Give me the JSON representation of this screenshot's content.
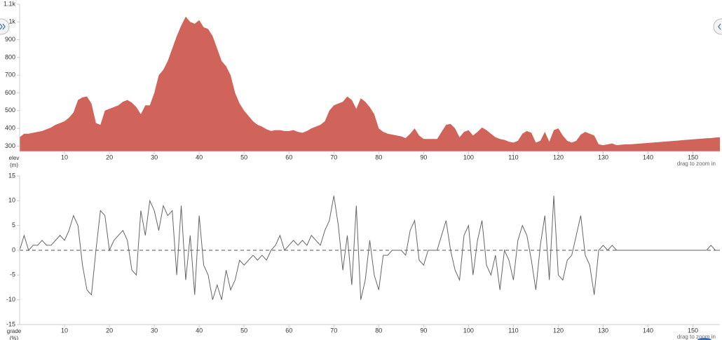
{
  "chart_data": [
    {
      "type": "area",
      "color": "#d0645a",
      "ylabel_lines": [
        "elev",
        "(m)"
      ],
      "annotation": "drag to zoom in",
      "xlim": [
        0,
        156
      ],
      "xticks": [
        10,
        20,
        30,
        40,
        50,
        60,
        70,
        80,
        90,
        100,
        110,
        120,
        130,
        140,
        150
      ],
      "ylim": [
        270,
        1100
      ],
      "yticks": [
        300,
        400,
        500,
        600,
        700,
        800,
        900,
        {
          "value": 1000,
          "label": "1k"
        },
        {
          "value": 1100,
          "label": "1.1k"
        }
      ],
      "x": [
        0,
        1,
        2,
        3,
        4,
        5,
        6,
        7,
        8,
        9,
        10,
        11,
        12,
        13,
        14,
        15,
        16,
        17,
        18,
        19,
        20,
        21,
        22,
        23,
        24,
        25,
        26,
        27,
        28,
        29,
        30,
        31,
        32,
        33,
        34,
        35,
        36,
        37,
        38,
        39,
        40,
        41,
        42,
        43,
        44,
        45,
        46,
        47,
        48,
        49,
        50,
        51,
        52,
        53,
        54,
        55,
        56,
        57,
        58,
        59,
        60,
        61,
        62,
        63,
        64,
        65,
        66,
        67,
        68,
        69,
        70,
        71,
        72,
        73,
        74,
        75,
        76,
        77,
        78,
        79,
        80,
        81,
        82,
        83,
        84,
        85,
        86,
        87,
        88,
        89,
        90,
        91,
        92,
        93,
        94,
        95,
        96,
        97,
        98,
        99,
        100,
        101,
        102,
        103,
        104,
        105,
        106,
        107,
        108,
        109,
        110,
        111,
        112,
        113,
        114,
        115,
        116,
        117,
        118,
        119,
        120,
        121,
        122,
        123,
        124,
        125,
        126,
        127,
        128,
        129,
        130,
        131,
        132,
        133,
        134,
        135,
        136,
        137,
        138,
        139,
        140,
        141,
        142,
        143,
        144,
        145,
        146,
        147,
        148,
        149,
        150,
        151,
        152,
        153,
        154,
        155,
        156
      ],
      "values": [
        350,
        370,
        370,
        375,
        380,
        385,
        395,
        405,
        420,
        430,
        440,
        460,
        490,
        560,
        575,
        580,
        540,
        430,
        420,
        500,
        510,
        520,
        530,
        550,
        560,
        545,
        520,
        480,
        530,
        530,
        600,
        700,
        730,
        780,
        850,
        920,
        980,
        1030,
        1000,
        990,
        1010,
        970,
        960,
        920,
        850,
        780,
        750,
        700,
        600,
        540,
        500,
        470,
        440,
        420,
        410,
        395,
        385,
        390,
        390,
        385,
        385,
        390,
        380,
        375,
        385,
        400,
        410,
        420,
        440,
        500,
        530,
        540,
        550,
        580,
        560,
        510,
        570,
        550,
        520,
        480,
        400,
        380,
        370,
        365,
        360,
        355,
        345,
        370,
        400,
        360,
        340,
        340,
        340,
        340,
        380,
        420,
        425,
        400,
        350,
        380,
        390,
        360,
        380,
        405,
        390,
        370,
        350,
        340,
        335,
        325,
        320,
        330,
        370,
        385,
        375,
        320,
        330,
        380,
        325,
        390,
        400,
        360,
        330,
        320,
        330,
        365,
        380,
        370,
        360,
        310,
        305,
        310,
        315,
        305,
        308,
        310,
        310,
        312,
        314,
        316,
        318,
        320,
        322,
        324,
        326,
        328,
        330,
        332,
        334,
        336,
        338,
        340,
        342,
        344,
        345,
        348,
        350
      ]
    },
    {
      "type": "line",
      "color": "#666666",
      "hline": 0,
      "ylabel_lines": [
        "grade",
        "(%)"
      ],
      "annotation": "drag to zoom in",
      "xlim": [
        0,
        156
      ],
      "xticks": [
        10,
        20,
        30,
        40,
        50,
        60,
        70,
        80,
        90,
        100,
        110,
        120,
        130,
        140,
        150
      ],
      "ylim": [
        -15,
        15
      ],
      "yticks": [
        -15,
        -10,
        -5,
        0,
        5,
        10,
        15
      ],
      "x": [
        0,
        1,
        2,
        3,
        4,
        5,
        6,
        7,
        8,
        9,
        10,
        11,
        12,
        13,
        14,
        15,
        16,
        17,
        18,
        19,
        20,
        21,
        22,
        23,
        24,
        25,
        26,
        27,
        28,
        29,
        30,
        31,
        32,
        33,
        34,
        35,
        36,
        37,
        38,
        39,
        40,
        41,
        42,
        43,
        44,
        45,
        46,
        47,
        48,
        49,
        50,
        51,
        52,
        53,
        54,
        55,
        56,
        57,
        58,
        59,
        60,
        61,
        62,
        63,
        64,
        65,
        66,
        67,
        68,
        69,
        70,
        71,
        72,
        73,
        74,
        75,
        76,
        77,
        78,
        79,
        80,
        81,
        82,
        83,
        84,
        85,
        86,
        87,
        88,
        89,
        90,
        91,
        92,
        93,
        94,
        95,
        96,
        97,
        98,
        99,
        100,
        101,
        102,
        103,
        104,
        105,
        106,
        107,
        108,
        109,
        110,
        111,
        112,
        113,
        114,
        115,
        116,
        117,
        118,
        119,
        120,
        121,
        122,
        123,
        124,
        125,
        126,
        127,
        128,
        129,
        130,
        131,
        132,
        133,
        134,
        135,
        136,
        137,
        138,
        139,
        140,
        141,
        142,
        143,
        144,
        145,
        146,
        147,
        148,
        149,
        150,
        151,
        152,
        153,
        154,
        155,
        156
      ],
      "values": [
        0,
        3,
        0,
        1,
        1,
        2,
        1,
        1,
        2,
        3,
        2,
        4,
        7,
        5,
        -3,
        -8,
        -9,
        0,
        8,
        7,
        0,
        2,
        3,
        4,
        2,
        -4,
        -5,
        8,
        3,
        10,
        8,
        4,
        9,
        7,
        8,
        -5,
        9,
        -6,
        3,
        -9,
        7,
        -3,
        -5,
        -10,
        -7,
        -10,
        -4,
        -8,
        -6,
        -2,
        -3,
        -2,
        -1,
        -2,
        -1,
        -2,
        0,
        1,
        3,
        0,
        1,
        2,
        1,
        2,
        1,
        3,
        2,
        1,
        4,
        6,
        11,
        5,
        -4,
        3,
        -7,
        9,
        -10,
        -6,
        2,
        -5,
        -8,
        -1,
        -1,
        0,
        0,
        0,
        -1,
        4,
        6,
        -2,
        -3,
        0,
        0,
        0,
        3,
        6,
        0,
        -4,
        -6,
        3,
        5,
        -5,
        2,
        6,
        -3,
        -5,
        -1,
        -8,
        0,
        -2,
        -6,
        2,
        5,
        3,
        -2,
        -8,
        1,
        7,
        -6,
        11,
        -5,
        -6,
        -2,
        -1,
        3,
        7,
        -1,
        -3,
        -9,
        0,
        1,
        0,
        1,
        0,
        0,
        0,
        0,
        0,
        0,
        0,
        0,
        0,
        0,
        0,
        0,
        0,
        0,
        0,
        0,
        0,
        0,
        0,
        0,
        0,
        1,
        0,
        0
      ]
    }
  ]
}
